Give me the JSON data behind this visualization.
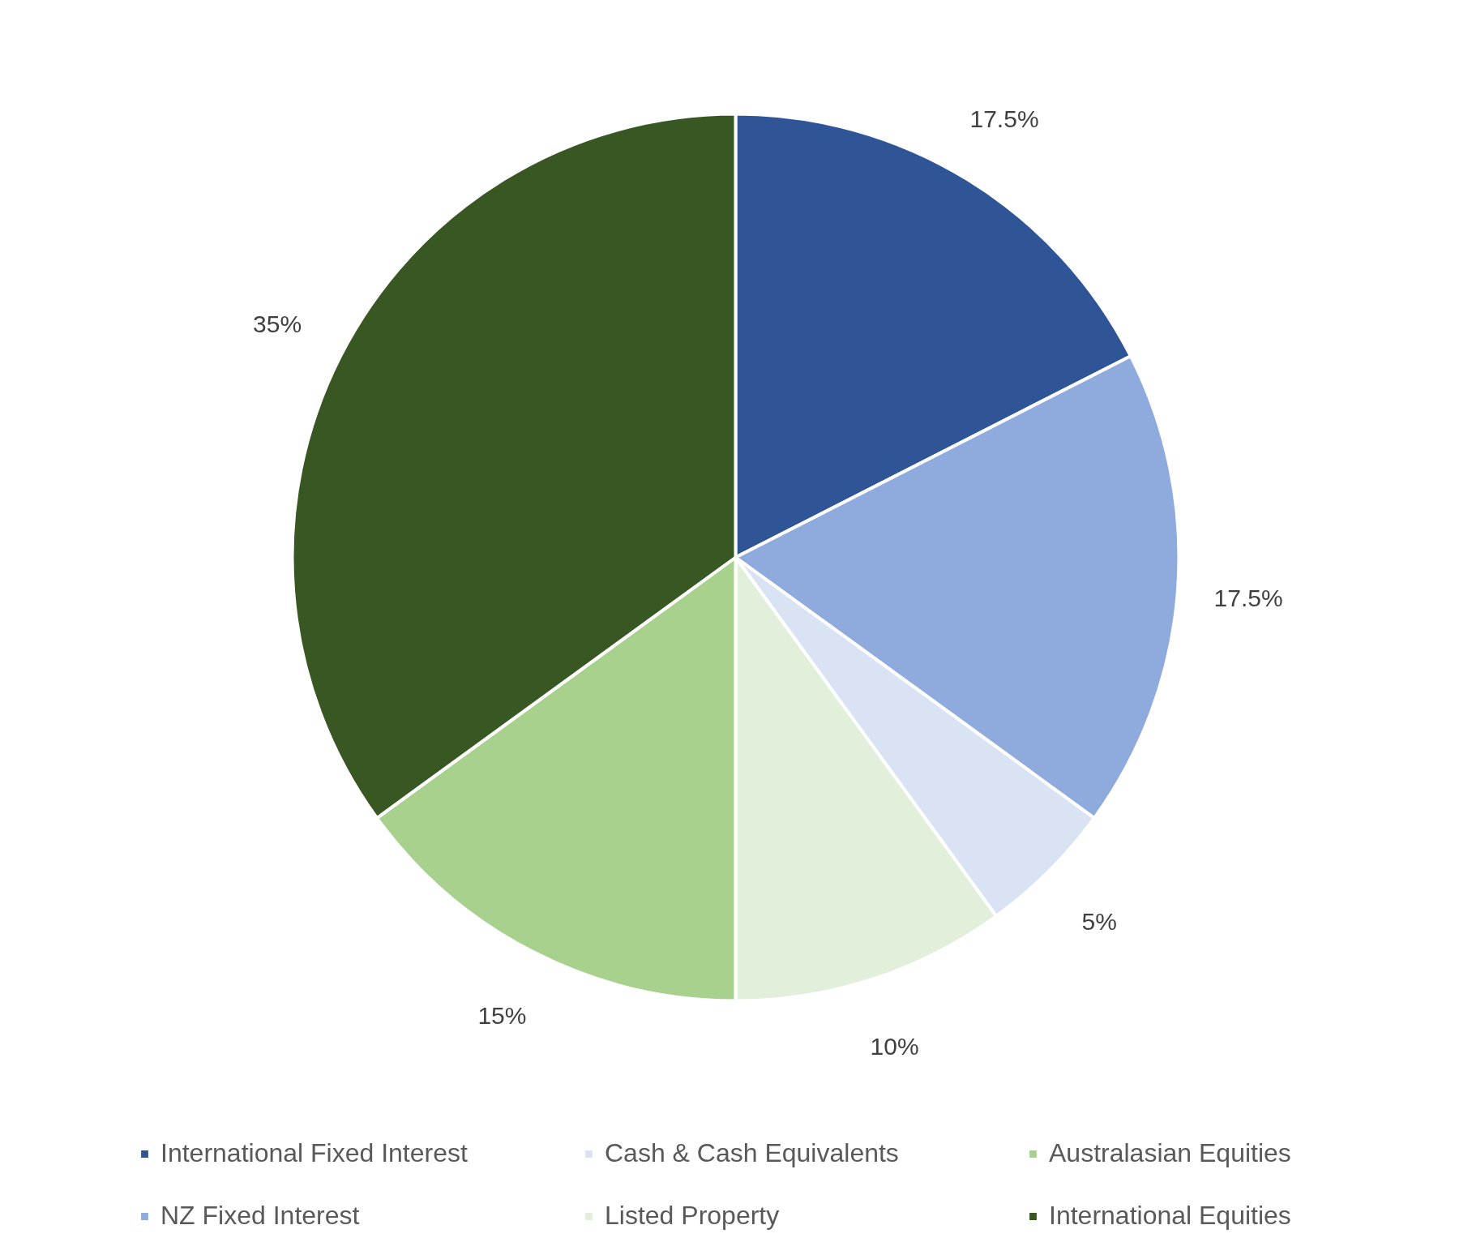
{
  "chart_data": {
    "type": "pie",
    "categories": [
      "International Fixed Interest",
      "NZ Fixed Interest",
      "Cash & Cash Equivalents",
      "Listed Property",
      "Australasian Equities",
      "International Equities"
    ],
    "values": [
      17.5,
      17.5,
      5,
      10,
      15,
      35
    ],
    "colors": [
      "#2f5597",
      "#8faadc",
      "#dae3f3",
      "#e2efda",
      "#a9d18e",
      "#385723"
    ],
    "value_labels": [
      "17.5%",
      "17.5%",
      "5%",
      "10%",
      "15%",
      "35%"
    ],
    "legend": "bottom"
  }
}
